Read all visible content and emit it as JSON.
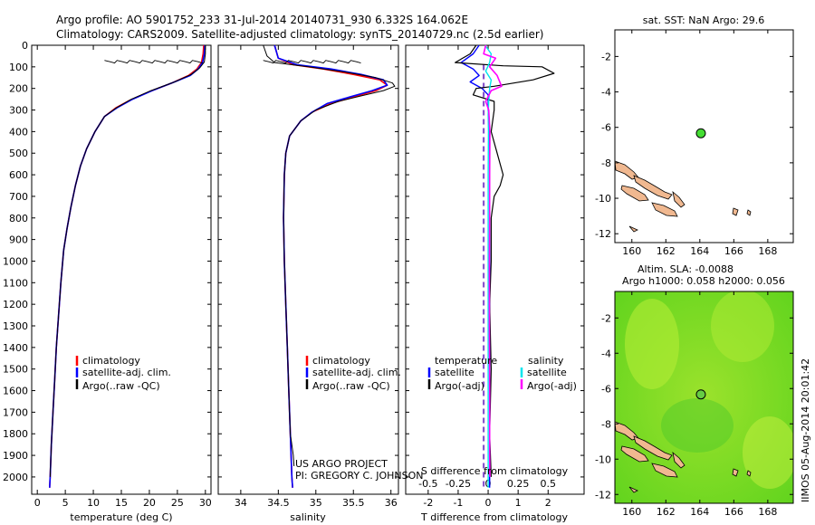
{
  "header": {
    "title_line1": "Argo profile: AO 5901752_233 31-Jul-2014 20140731_930 6.332S 164.062E",
    "title_line2": "Climatology: CARS2009. Satellite-adjusted climatology: synTS_20140729.nc (2.5d earlier)"
  },
  "colors": {
    "climatology": "#ff0000",
    "satellite": "#0000ff",
    "argo": "#000000",
    "sal_satellite": "#00e5ee",
    "sal_argo": "#ff00ff",
    "dashed": "#8855cc",
    "land": "#f0b890"
  },
  "attribution": {
    "line1": "US ARGO PROJECT",
    "line2": "PI: GREGORY C. JOHNSON"
  },
  "side_stamp": "IIMOS 05-Aug-2014 20:01:42",
  "chart_data": [
    {
      "id": "temperature",
      "type": "line",
      "xlabel": "temperature (deg C)",
      "ylabel": "",
      "xlim": [
        -1,
        31
      ],
      "ylim": [
        2080,
        0
      ],
      "xticks": [
        0,
        5,
        10,
        15,
        20,
        25,
        30
      ],
      "yticks": [
        0,
        100,
        200,
        300,
        400,
        500,
        600,
        700,
        800,
        900,
        1000,
        1100,
        1200,
        1300,
        1400,
        1500,
        1600,
        1700,
        1800,
        1900,
        2000
      ],
      "legend": [
        "climatology",
        "satellite-adj. clim.",
        "Argo(..raw -QC)"
      ],
      "series": [
        {
          "name": "climatology",
          "color": "#ff0000",
          "width": 1.6,
          "points": [
            [
              29.7,
              0
            ],
            [
              29.6,
              40
            ],
            [
              29.3,
              80
            ],
            [
              28.5,
              110
            ],
            [
              27,
              140
            ],
            [
              24,
              175
            ],
            [
              20,
              215
            ],
            [
              16.5,
              255
            ],
            [
              14,
              290
            ],
            [
              12,
              330
            ],
            [
              10.3,
              400
            ],
            [
              8.8,
              480
            ],
            [
              7.7,
              560
            ],
            [
              6.8,
              650
            ],
            [
              6,
              750
            ],
            [
              5.3,
              850
            ],
            [
              4.7,
              950
            ],
            [
              4.2,
              1100
            ],
            [
              3.8,
              1250
            ],
            [
              3.4,
              1400
            ],
            [
              3.1,
              1550
            ],
            [
              2.8,
              1700
            ],
            [
              2.5,
              1850
            ],
            [
              2.3,
              2000
            ],
            [
              2.2,
              2050
            ]
          ]
        },
        {
          "name": "satellite-adj. clim.",
          "color": "#0000ff",
          "width": 1.6,
          "points": [
            [
              29.9,
              0
            ],
            [
              29.8,
              40
            ],
            [
              29.5,
              80
            ],
            [
              28.7,
              110
            ],
            [
              27.3,
              140
            ],
            [
              24.5,
              170
            ],
            [
              20.5,
              210
            ],
            [
              17,
              250
            ],
            [
              14.2,
              290
            ],
            [
              12,
              330
            ],
            [
              10.3,
              400
            ],
            [
              8.8,
              480
            ],
            [
              7.7,
              560
            ],
            [
              6.8,
              650
            ],
            [
              6,
              750
            ],
            [
              5.3,
              850
            ],
            [
              4.7,
              950
            ],
            [
              4.2,
              1100
            ],
            [
              3.8,
              1250
            ],
            [
              3.4,
              1400
            ],
            [
              3.1,
              1550
            ],
            [
              2.8,
              1700
            ],
            [
              2.5,
              1850
            ],
            [
              2.3,
              2000
            ],
            [
              2.2,
              2050
            ]
          ]
        },
        {
          "name": "Argo(..raw -QC)",
          "color": "#000000",
          "width": 1.0,
          "points": [
            [
              30,
              0
            ],
            [
              30,
              40
            ],
            [
              29.8,
              78
            ],
            [
              29,
              105
            ],
            [
              27.5,
              135
            ],
            [
              24.5,
              170
            ],
            [
              20.3,
              210
            ],
            [
              16.8,
              250
            ],
            [
              14.1,
              290
            ],
            [
              12,
              330
            ],
            [
              10.3,
              400
            ],
            [
              8.8,
              480
            ],
            [
              7.7,
              560
            ],
            [
              6.8,
              650
            ],
            [
              6,
              750
            ],
            [
              5.3,
              850
            ],
            [
              4.7,
              950
            ],
            [
              4.2,
              1100
            ],
            [
              3.8,
              1250
            ],
            [
              3.4,
              1400
            ],
            [
              3.1,
              1550
            ],
            [
              2.8,
              1700
            ],
            [
              2.5,
              1850
            ],
            [
              2.3,
              2000
            ]
          ]
        }
      ]
    },
    {
      "id": "salinity",
      "type": "line",
      "xlabel": "salinity",
      "ylabel": "",
      "xlim": [
        33.7,
        36.1
      ],
      "ylim": [
        2080,
        0
      ],
      "xticks": [
        34,
        34.5,
        35,
        35.5,
        36
      ],
      "legend": [
        "climatology",
        "satellite-adj. clim.",
        "Argo(..raw -QC)"
      ],
      "series": [
        {
          "name": "climatology",
          "color": "#ff0000",
          "width": 1.6,
          "points": [
            [
              34.45,
              0
            ],
            [
              34.5,
              60
            ],
            [
              34.7,
              90
            ],
            [
              35.1,
              110
            ],
            [
              35.5,
              135
            ],
            [
              35.85,
              160
            ],
            [
              35.95,
              185
            ],
            [
              35.8,
              210
            ],
            [
              35.5,
              240
            ],
            [
              35.2,
              270
            ],
            [
              34.95,
              310
            ],
            [
              34.8,
              350
            ],
            [
              34.65,
              420
            ],
            [
              34.6,
              500
            ],
            [
              34.58,
              600
            ],
            [
              34.57,
              800
            ],
            [
              34.58,
              1000
            ],
            [
              34.6,
              1200
            ],
            [
              34.62,
              1400
            ],
            [
              34.64,
              1600
            ],
            [
              34.66,
              1800
            ],
            [
              34.68,
              2000
            ],
            [
              34.69,
              2050
            ]
          ]
        },
        {
          "name": "satellite-adj. clim.",
          "color": "#0000ff",
          "width": 1.6,
          "points": [
            [
              34.45,
              0
            ],
            [
              34.5,
              60
            ],
            [
              34.75,
              90
            ],
            [
              35.2,
              110
            ],
            [
              35.6,
              135
            ],
            [
              35.9,
              160
            ],
            [
              35.95,
              185
            ],
            [
              35.75,
              210
            ],
            [
              35.45,
              240
            ],
            [
              35.15,
              270
            ],
            [
              34.95,
              310
            ],
            [
              34.8,
              350
            ],
            [
              34.65,
              420
            ],
            [
              34.6,
              500
            ],
            [
              34.58,
              600
            ],
            [
              34.57,
              800
            ],
            [
              34.58,
              1000
            ],
            [
              34.6,
              1200
            ],
            [
              34.62,
              1400
            ],
            [
              34.64,
              1600
            ],
            [
              34.66,
              1800
            ],
            [
              34.68,
              2000
            ],
            [
              34.69,
              2050
            ]
          ]
        },
        {
          "name": "Argo(..raw -QC)",
          "color": "#000000",
          "width": 1.0,
          "points": [
            [
              34.3,
              0
            ],
            [
              34.35,
              50
            ],
            [
              34.45,
              80
            ],
            [
              34.9,
              100
            ],
            [
              35.4,
              125
            ],
            [
              35.8,
              150
            ],
            [
              36.02,
              175
            ],
            [
              36.05,
              190
            ],
            [
              35.9,
              210
            ],
            [
              35.6,
              235
            ],
            [
              35.3,
              260
            ],
            [
              35.0,
              300
            ],
            [
              34.8,
              350
            ],
            [
              34.65,
              420
            ],
            [
              34.6,
              500
            ],
            [
              34.58,
              600
            ],
            [
              34.57,
              800
            ],
            [
              34.58,
              1000
            ],
            [
              34.6,
              1200
            ],
            [
              34.62,
              1400
            ],
            [
              34.64,
              1600
            ],
            [
              34.66,
              1800
            ],
            [
              34.7,
              1900
            ],
            [
              34.71,
              1950
            ]
          ]
        }
      ]
    },
    {
      "id": "difference",
      "type": "line",
      "xlabel": "T difference from climatology",
      "xlabel2": "S difference from climatology",
      "xlim": [
        -2.75,
        3.2
      ],
      "ylim": [
        2080,
        0
      ],
      "xticks": [
        -2,
        -1,
        0,
        1,
        2
      ],
      "xticks2": [
        -0.5,
        -0.25,
        0,
        0.25,
        0.5
      ],
      "legend_left_title": "temperature",
      "legend_right_title": "salinity",
      "legend_left": [
        "satellite",
        "Argo(-adj)"
      ],
      "legend_right": [
        "satellite",
        "Argo(-adj)"
      ],
      "series": [
        {
          "name": "zero",
          "color": "#8855cc",
          "width": 2.2,
          "dash": true,
          "points": [
            [
              -0.15,
              90
            ],
            [
              -0.15,
              2050
            ]
          ]
        },
        {
          "name": "T satellite",
          "color": "#0000ff",
          "width": 1.4,
          "points": [
            [
              -0.3,
              0
            ],
            [
              -0.5,
              40
            ],
            [
              -0.9,
              80
            ],
            [
              -0.5,
              110
            ],
            [
              -0.3,
              140
            ],
            [
              -0.6,
              170
            ],
            [
              -0.2,
              200
            ],
            [
              0.0,
              230
            ],
            [
              0.0,
              300
            ],
            [
              0.05,
              400
            ],
            [
              0.05,
              600
            ],
            [
              0.05,
              1000
            ],
            [
              0.05,
              1500
            ],
            [
              0.05,
              2050
            ]
          ]
        },
        {
          "name": "T Argo(-adj)",
          "color": "#000000",
          "width": 1.2,
          "points": [
            [
              -0.4,
              0
            ],
            [
              -0.6,
              40
            ],
            [
              -1.1,
              80
            ],
            [
              0.5,
              95
            ],
            [
              1.8,
              100
            ],
            [
              2.2,
              130
            ],
            [
              1.5,
              160
            ],
            [
              0.2,
              190
            ],
            [
              -0.4,
              200
            ],
            [
              -0.5,
              230
            ],
            [
              0.2,
              260
            ],
            [
              0.2,
              300
            ],
            [
              0.1,
              400
            ],
            [
              0.3,
              500
            ],
            [
              0.5,
              600
            ],
            [
              0.4,
              650
            ],
            [
              0.2,
              700
            ],
            [
              0.1,
              800
            ],
            [
              0.1,
              1000
            ],
            [
              0.05,
              1200
            ],
            [
              0.1,
              1500
            ],
            [
              0.05,
              1800
            ],
            [
              0.1,
              2000
            ]
          ]
        },
        {
          "name": "S satellite",
          "color": "#00e5ee",
          "width": 1.4,
          "points": [
            [
              -0.1,
              0
            ],
            [
              0.1,
              40
            ],
            [
              0.05,
              80
            ],
            [
              -0.08,
              120
            ],
            [
              0.1,
              160
            ],
            [
              0.05,
              200
            ],
            [
              0.02,
              260
            ],
            [
              0.0,
              320
            ],
            [
              0.01,
              400
            ],
            [
              0.0,
              600
            ],
            [
              0.0,
              1000
            ],
            [
              0.0,
              1500
            ],
            [
              0.0,
              2050
            ]
          ]
        },
        {
          "name": "S Argo(-adj)",
          "color": "#ff00ff",
          "width": 1.6,
          "points": [
            [
              -0.08,
              0
            ],
            [
              -0.15,
              40
            ],
            [
              0.25,
              60
            ],
            [
              0.05,
              100
            ],
            [
              0.3,
              140
            ],
            [
              0.45,
              190
            ],
            [
              0.1,
              210
            ],
            [
              -0.08,
              260
            ],
            [
              0.02,
              300
            ],
            [
              0.06,
              400
            ],
            [
              0.05,
              600
            ],
            [
              0.05,
              800
            ],
            [
              0.04,
              1000
            ],
            [
              0.04,
              1300
            ],
            [
              0.05,
              1600
            ],
            [
              0.05,
              1900
            ],
            [
              0.06,
              2000
            ]
          ]
        }
      ]
    },
    {
      "id": "sst-map",
      "type": "scatter",
      "title": "sat. SST: NaN Argo: 29.6",
      "xlim": [
        159,
        169.5
      ],
      "ylim": [
        -12.5,
        -0.5
      ],
      "xticks": [
        160,
        162,
        164,
        166,
        168
      ],
      "yticks": [
        -2,
        -4,
        -6,
        -8,
        -10,
        -12
      ],
      "profile_point": [
        164.062,
        -6.332
      ]
    },
    {
      "id": "sla-map",
      "type": "heatmap",
      "title": "Altim. SLA: -0.0088",
      "subtitle": "Argo h1000: 0.058 h2000: 0.056",
      "xlim": [
        159,
        169.5
      ],
      "ylim": [
        -12.5,
        -0.5
      ],
      "xticks": [
        160,
        162,
        164,
        166,
        168
      ],
      "yticks": [
        -2,
        -4,
        -6,
        -8,
        -10,
        -12
      ],
      "profile_point": [
        164.062,
        -6.332
      ]
    }
  ]
}
